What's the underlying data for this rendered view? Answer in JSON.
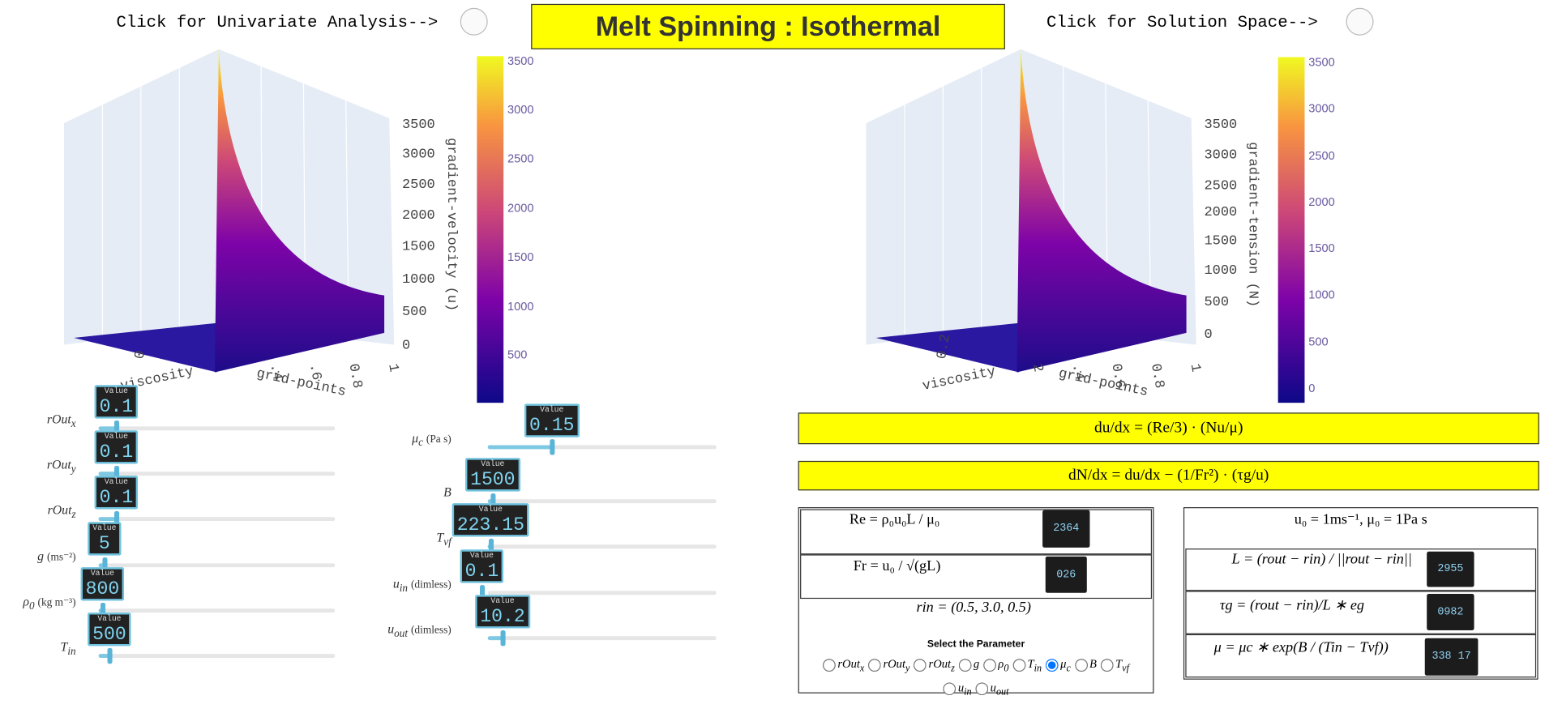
{
  "header": {
    "univariate_button": "Click for Univariate Analysis-->",
    "title": "Melt Spinning : Isothermal",
    "solution_button": "Click for Solution Space-->"
  },
  "plots": [
    {
      "z_label": "gradient-velocity (u)",
      "x_label": "viscosity",
      "y_label": "grid-points",
      "x_ticks": [
        "0"
      ],
      "y_ticks": [
        ".4",
        ".6",
        "0.8",
        "1"
      ],
      "z_ticks": [
        "3500",
        "3000",
        "2500",
        "2000",
        "1500",
        "1000",
        "500",
        "0"
      ],
      "colorbar_ticks": [
        "3500",
        "3000",
        "2500",
        "2000",
        "1500",
        "1000",
        "500"
      ]
    },
    {
      "z_label": "gradient-tension (N)",
      "x_label": "viscosity",
      "y_label": "grid-points",
      "x_ticks": [
        "0.2"
      ],
      "y_ticks": [
        "2",
        ".4",
        "0.6",
        "0.8",
        "1"
      ],
      "z_ticks": [
        "3500",
        "3000",
        "2500",
        "2000",
        "1500",
        "1000",
        "500",
        "0"
      ],
      "colorbar_ticks": [
        "3500",
        "3000",
        "2500",
        "2000",
        "1500",
        "1000",
        "500",
        "0"
      ]
    }
  ],
  "value_caption": "Value",
  "sliders_left": [
    {
      "base": "rOut",
      "sub": "x",
      "value": "0.1"
    },
    {
      "base": "rOut",
      "sub": "y",
      "value": "0.1"
    },
    {
      "base": "rOut",
      "sub": "z",
      "value": "0.1"
    },
    {
      "base": "g",
      "unit": "(ms⁻²)",
      "value": "5"
    },
    {
      "base": "ρ",
      "sub": "0",
      "unit": "(kg m⁻³)",
      "value": "800"
    },
    {
      "base": "T",
      "sub": "in",
      "value": "500"
    }
  ],
  "sliders_right": [
    {
      "base": "μ",
      "sub": "c",
      "unit": "(Pa s)",
      "value": "0.15"
    },
    {
      "base": "B",
      "value": "1500"
    },
    {
      "base": "T",
      "sub": "vf",
      "value": "223.15"
    },
    {
      "base": "u",
      "sub": "in",
      "unit": "(dimless)",
      "value": "0.1"
    },
    {
      "base": "u",
      "sub": "out",
      "unit": "(dimless)",
      "value": "10.2"
    }
  ],
  "equations": [
    "du/dx = (Re/3) · (Nu/μ)",
    "dN/dx = du/dx − (1/Fr²) · (τg/u)"
  ],
  "left_table": {
    "rows": [
      {
        "formula": "Re = ρ₀u₀L / μ₀",
        "readout": "2364"
      },
      {
        "formula": "Fr = u₀ / √(gL)",
        "readout": "026"
      }
    ],
    "r_in": "rin = (0.5, 3.0, 0.5)",
    "select_label": "Select the Parameter",
    "options": [
      {
        "base": "rOut",
        "sub": "x"
      },
      {
        "base": "rOut",
        "sub": "y"
      },
      {
        "base": "rOut",
        "sub": "z"
      },
      {
        "base": "g"
      },
      {
        "base": "ρ",
        "sub": "0"
      },
      {
        "base": "T",
        "sub": "in"
      },
      {
        "base": "μ",
        "sub": "c"
      },
      {
        "base": "B"
      },
      {
        "base": "T",
        "sub": "vf"
      },
      {
        "base": "u",
        "sub": "in"
      },
      {
        "base": "u",
        "sub": "out"
      }
    ],
    "selected": 6
  },
  "right_table": {
    "header": "u₀ = 1ms⁻¹, μ₀ = 1Pa s",
    "rows": [
      {
        "formula": "L = (rout − rin) / ||rout − rin||",
        "readout": "2955"
      },
      {
        "formula": "τg = (rout − rin)/L ∗ eg",
        "readout": "0982"
      },
      {
        "formula": "μ = μc ∗ exp(B / (Tin − Tvf))",
        "readout": "338 17"
      }
    ]
  }
}
